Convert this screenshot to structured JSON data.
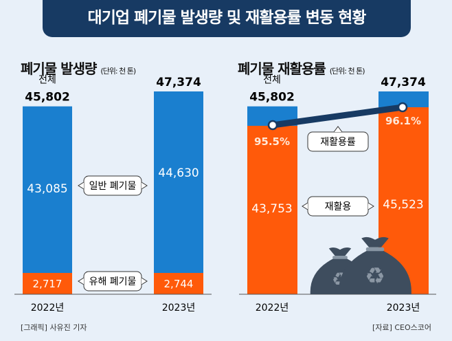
{
  "title": "대기업 폐기물 발생량 및 재활용률 변동 현황",
  "credit": "[그래픽] 사유진 기자",
  "source": "[자료] CEO스코어",
  "colors": {
    "general": "#1a7fcf",
    "hazard": "#ff5a0a",
    "recycled": "#ff5a0a",
    "rate_line": "#173a63",
    "banner": "#173a63"
  },
  "chart_data": [
    {
      "type": "bar",
      "stacked": true,
      "title": "폐기물 발생량",
      "unit": "(단위: 천 톤)",
      "categories": [
        "2022년",
        "2023년"
      ],
      "total_label": "전체",
      "totals": [
        45802,
        47374
      ],
      "series": [
        {
          "name": "유해 폐기물",
          "values": [
            2717,
            2744
          ]
        },
        {
          "name": "일반 폐기물",
          "values": [
            43085,
            44630
          ]
        }
      ]
    },
    {
      "type": "bar",
      "stacked": true,
      "title": "폐기물 재활용률",
      "unit": "(단위: 천 톤)",
      "categories": [
        "2022년",
        "2023년"
      ],
      "total_label": "전체",
      "totals": [
        45802,
        47374
      ],
      "series": [
        {
          "name": "재활용",
          "values": [
            43753,
            45523
          ]
        }
      ],
      "line": {
        "name": "재활용률",
        "values": [
          95.5,
          96.1
        ],
        "labels": [
          "95.5%",
          "96.1%"
        ]
      }
    }
  ]
}
